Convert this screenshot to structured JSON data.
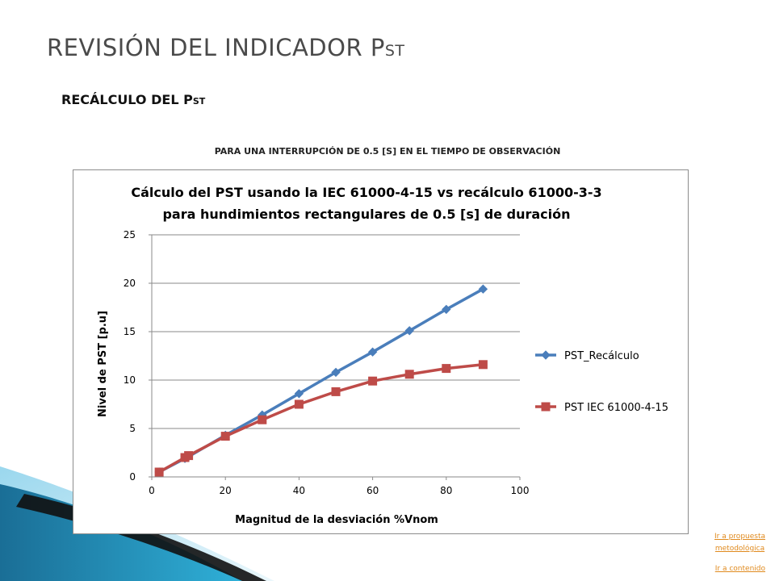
{
  "slide": {
    "title_main": "REVISIÓN DEL INDICADOR P",
    "title_sub": "ST",
    "subtitle_main": "RECÁLCULO DEL P",
    "subtitle_sub": "ST",
    "caption": "PARA UNA INTERRUPCIÓN DE 0.5 [S] EN EL TIEMPO DE OBSERVACIÓN"
  },
  "nav_links": {
    "propuesta_line1": "Ir a propuesta",
    "propuesta_line2": "metodológica",
    "contenido": "Ir a contenido"
  },
  "colors": {
    "series1": "#4a7ebb",
    "series2": "#be4b48",
    "link": "#e08a1e",
    "deco_blue": "#1f8fb8"
  },
  "chart_data": {
    "type": "line",
    "title_line1": "Cálculo del PST usando la IEC 61000-4-15 vs recálculo 61000-3-3",
    "title_line2": "para hundimientos rectangulares de 0.5 [s] de duración",
    "xlabel": "Magnitud de la desviación %Vnom",
    "ylabel": "Nivel de PST [p.u]",
    "xlim": [
      0,
      100
    ],
    "ylim": [
      0,
      25
    ],
    "xticks": [
      0,
      20,
      40,
      60,
      80,
      100
    ],
    "yticks": [
      0,
      5,
      10,
      15,
      20,
      25
    ],
    "grid": "horizontal",
    "legend_position": "right",
    "series": [
      {
        "name": "PST_Recálculo",
        "marker": "diamond",
        "x": [
          2,
          9,
          10,
          20,
          30,
          40,
          50,
          60,
          70,
          80,
          90
        ],
        "y": [
          0.5,
          1.9,
          2.1,
          4.3,
          6.4,
          8.6,
          10.8,
          12.9,
          15.1,
          17.3,
          19.4
        ]
      },
      {
        "name": "PST IEC 61000-4-15",
        "marker": "square",
        "x": [
          2,
          9,
          10,
          20,
          30,
          40,
          50,
          60,
          70,
          80,
          90
        ],
        "y": [
          0.5,
          2.0,
          2.2,
          4.2,
          5.9,
          7.5,
          8.8,
          9.9,
          10.6,
          11.2,
          11.6
        ]
      }
    ]
  }
}
